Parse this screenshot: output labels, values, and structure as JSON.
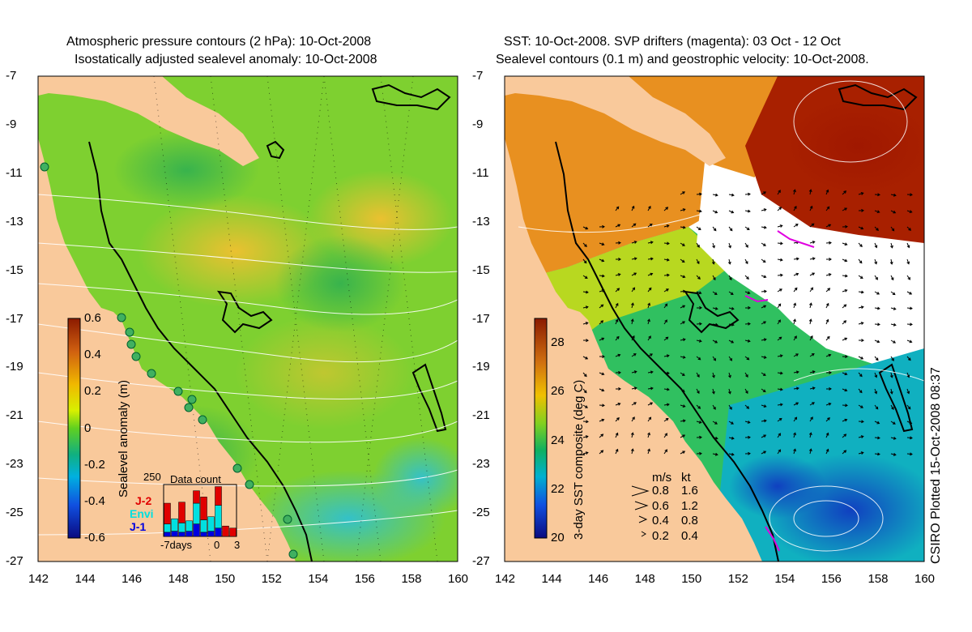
{
  "left_panel": {
    "title_line1": "Atmospheric pressure contours (2 hPa): 10-Oct-2008",
    "title_line2": "Isostatically adjusted sealevel anomaly: 10-Oct-2008",
    "colorbar_label": "Sealevel anomaly (m)",
    "colorbar_ticks": [
      "0.6",
      "0.4",
      "0.2",
      "0",
      "-0.2",
      "-0.4",
      "-0.6"
    ],
    "colorbar_range": [
      -0.6,
      0.6
    ],
    "inset": {
      "title": "Data count",
      "ymax_label": "250",
      "legend": [
        {
          "label": "J-2",
          "color": "#e00000"
        },
        {
          "label": "Envi",
          "color": "#00e0e0"
        },
        {
          "label": "J-1",
          "color": "#0000e0"
        }
      ],
      "x_labels": [
        "-7days",
        "0",
        "3"
      ],
      "x_range": [
        -7,
        3
      ],
      "ymax": 250,
      "days": [
        -7,
        -6,
        -5,
        -4,
        -3,
        -2,
        -1,
        0,
        1,
        2
      ],
      "counts_j1": [
        20,
        25,
        20,
        25,
        60,
        20,
        25,
        40,
        0,
        0
      ],
      "counts_envi": [
        40,
        60,
        45,
        50,
        100,
        60,
        70,
        110,
        0,
        0
      ],
      "counts_j2": [
        100,
        0,
        100,
        0,
        60,
        110,
        0,
        90,
        50,
        40
      ]
    }
  },
  "right_panel": {
    "title_line1": "SST: 10-Oct-2008. SVP drifters (magenta): 03 Oct - 12 Oct",
    "title_line2": "Sealevel contours (0.1 m) and geostrophic velocity: 10-Oct-2008.",
    "colorbar_label": "3-day SST composite (deg C)",
    "colorbar_ticks": [
      "28",
      "26",
      "24",
      "22",
      "20"
    ],
    "colorbar_range": [
      20,
      29
    ],
    "speed_legend": {
      "header_ms": "m/s",
      "header_kt": "kt",
      "rows": [
        {
          "ms": "0.8",
          "kt": "1.6"
        },
        {
          "ms": "0.6",
          "kt": "1.2"
        },
        {
          "ms": "0.4",
          "kt": "0.8"
        },
        {
          "ms": "0.2",
          "kt": "0.4"
        }
      ]
    }
  },
  "axes": {
    "lon_ticks": [
      "142",
      "144",
      "146",
      "148",
      "150",
      "152",
      "154",
      "156",
      "158",
      "160"
    ],
    "lat_ticks": [
      "-7",
      "-9",
      "-11",
      "-13",
      "-15",
      "-17",
      "-19",
      "-21",
      "-23",
      "-25",
      "-27"
    ],
    "lon_range": [
      142,
      160
    ],
    "lat_range": [
      -27,
      -7
    ]
  },
  "footer": {
    "plotted_stamp": "CSIRO Plotted 15-Oct-2008 08:37"
  },
  "colors": {
    "land": "#f9c99b",
    "coast": "#000000",
    "drifter": "#e000e0",
    "contour": "#ffffff"
  }
}
